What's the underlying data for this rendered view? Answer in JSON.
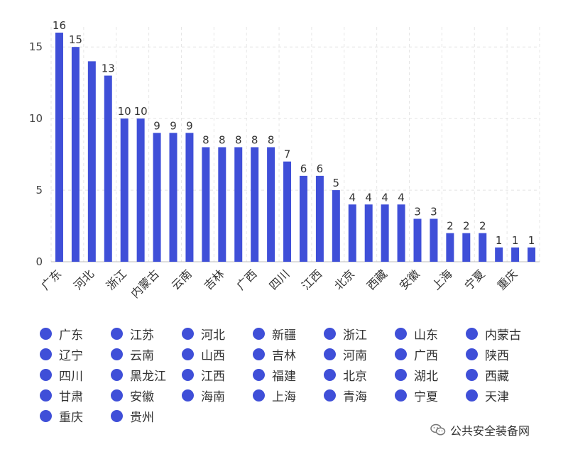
{
  "chart_data": {
    "type": "bar",
    "categories": [
      "广东",
      "江苏",
      "河北",
      "新疆",
      "浙江",
      "山东",
      "内蒙古",
      "辽宁",
      "云南",
      "山西",
      "吉林",
      "河南",
      "广西",
      "陕西",
      "四川",
      "黑龙江",
      "江西",
      "福建",
      "北京",
      "湖北",
      "西藏",
      "甘肃",
      "安徽",
      "海南",
      "上海",
      "青海",
      "宁夏",
      "天津",
      "重庆",
      "贵州"
    ],
    "x_tick_labels": [
      "广东",
      "河北",
      "浙江",
      "内蒙古",
      "云南",
      "吉林",
      "广西",
      "四川",
      "江西",
      "北京",
      "西藏",
      "安徽",
      "上海",
      "宁夏",
      "重庆"
    ],
    "values": [
      16,
      15,
      14,
      13,
      10,
      10,
      9,
      9,
      9,
      8,
      8,
      8,
      8,
      8,
      7,
      6,
      6,
      5,
      4,
      4,
      4,
      4,
      3,
      3,
      2,
      2,
      2,
      1,
      1,
      1
    ],
    "data_labels": [
      "16",
      "15",
      "",
      "13",
      "10",
      "10",
      "9",
      "9",
      "9",
      "8",
      "8",
      "8",
      "8",
      "8",
      "7",
      "6",
      "6",
      "5",
      "4",
      "4",
      "4",
      "4",
      "3",
      "3",
      "2",
      "2",
      "2",
      "1",
      "1",
      "1"
    ],
    "ylim": [
      0,
      16
    ],
    "y_ticks": [
      0,
      5,
      10,
      15
    ],
    "grid": "dashed",
    "legend_placement": "bottom",
    "title": "",
    "xlabel": "",
    "ylabel": "",
    "bar_color": "#3f4fd8"
  },
  "legend": {
    "color": "#3f4fd8",
    "items": [
      "广东",
      "江苏",
      "河北",
      "新疆",
      "浙江",
      "山东",
      "内蒙古",
      "辽宁",
      "云南",
      "山西",
      "吉林",
      "河南",
      "广西",
      "陕西",
      "四川",
      "黑龙江",
      "江西",
      "福建",
      "北京",
      "湖北",
      "西藏",
      "甘肃",
      "安徽",
      "海南",
      "上海",
      "青海",
      "宁夏",
      "天津",
      "重庆",
      "贵州"
    ]
  },
  "watermark": {
    "text": "公共安全装备网",
    "icon": "wechat-icon"
  }
}
